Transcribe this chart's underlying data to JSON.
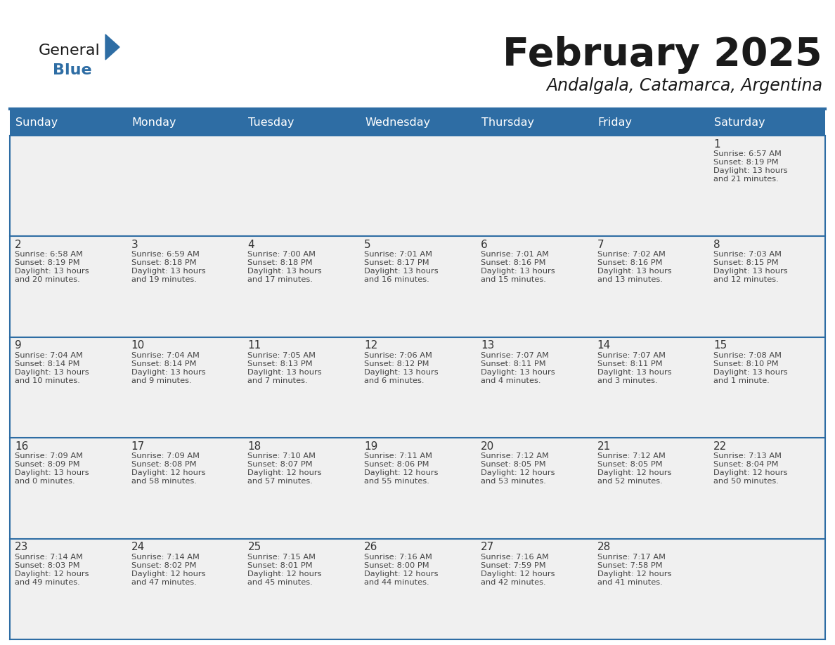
{
  "title": "February 2025",
  "subtitle": "Andalgala, Catamarca, Argentina",
  "header_bg": "#2E6DA4",
  "header_text_color": "#FFFFFF",
  "cell_bg_gray": "#F0F0F0",
  "cell_bg_white": "#FFFFFF",
  "day_number_color": "#333333",
  "cell_text_color": "#444444",
  "border_color": "#2E6DA4",
  "days_of_week": [
    "Sunday",
    "Monday",
    "Tuesday",
    "Wednesday",
    "Thursday",
    "Friday",
    "Saturday"
  ],
  "weeks": [
    [
      {
        "day": "",
        "sunrise": "",
        "sunset": "",
        "daylight": ""
      },
      {
        "day": "",
        "sunrise": "",
        "sunset": "",
        "daylight": ""
      },
      {
        "day": "",
        "sunrise": "",
        "sunset": "",
        "daylight": ""
      },
      {
        "day": "",
        "sunrise": "",
        "sunset": "",
        "daylight": ""
      },
      {
        "day": "",
        "sunrise": "",
        "sunset": "",
        "daylight": ""
      },
      {
        "day": "",
        "sunrise": "",
        "sunset": "",
        "daylight": ""
      },
      {
        "day": "1",
        "sunrise": "6:57 AM",
        "sunset": "8:19 PM",
        "daylight": "13 hours",
        "daylight2": "and 21 minutes."
      }
    ],
    [
      {
        "day": "2",
        "sunrise": "6:58 AM",
        "sunset": "8:19 PM",
        "daylight": "13 hours",
        "daylight2": "and 20 minutes."
      },
      {
        "day": "3",
        "sunrise": "6:59 AM",
        "sunset": "8:18 PM",
        "daylight": "13 hours",
        "daylight2": "and 19 minutes."
      },
      {
        "day": "4",
        "sunrise": "7:00 AM",
        "sunset": "8:18 PM",
        "daylight": "13 hours",
        "daylight2": "and 17 minutes."
      },
      {
        "day": "5",
        "sunrise": "7:01 AM",
        "sunset": "8:17 PM",
        "daylight": "13 hours",
        "daylight2": "and 16 minutes."
      },
      {
        "day": "6",
        "sunrise": "7:01 AM",
        "sunset": "8:16 PM",
        "daylight": "13 hours",
        "daylight2": "and 15 minutes."
      },
      {
        "day": "7",
        "sunrise": "7:02 AM",
        "sunset": "8:16 PM",
        "daylight": "13 hours",
        "daylight2": "and 13 minutes."
      },
      {
        "day": "8",
        "sunrise": "7:03 AM",
        "sunset": "8:15 PM",
        "daylight": "13 hours",
        "daylight2": "and 12 minutes."
      }
    ],
    [
      {
        "day": "9",
        "sunrise": "7:04 AM",
        "sunset": "8:14 PM",
        "daylight": "13 hours",
        "daylight2": "and 10 minutes."
      },
      {
        "day": "10",
        "sunrise": "7:04 AM",
        "sunset": "8:14 PM",
        "daylight": "13 hours",
        "daylight2": "and 9 minutes."
      },
      {
        "day": "11",
        "sunrise": "7:05 AM",
        "sunset": "8:13 PM",
        "daylight": "13 hours",
        "daylight2": "and 7 minutes."
      },
      {
        "day": "12",
        "sunrise": "7:06 AM",
        "sunset": "8:12 PM",
        "daylight": "13 hours",
        "daylight2": "and 6 minutes."
      },
      {
        "day": "13",
        "sunrise": "7:07 AM",
        "sunset": "8:11 PM",
        "daylight": "13 hours",
        "daylight2": "and 4 minutes."
      },
      {
        "day": "14",
        "sunrise": "7:07 AM",
        "sunset": "8:11 PM",
        "daylight": "13 hours",
        "daylight2": "and 3 minutes."
      },
      {
        "day": "15",
        "sunrise": "7:08 AM",
        "sunset": "8:10 PM",
        "daylight": "13 hours",
        "daylight2": "and 1 minute."
      }
    ],
    [
      {
        "day": "16",
        "sunrise": "7:09 AM",
        "sunset": "8:09 PM",
        "daylight": "13 hours",
        "daylight2": "and 0 minutes."
      },
      {
        "day": "17",
        "sunrise": "7:09 AM",
        "sunset": "8:08 PM",
        "daylight": "12 hours",
        "daylight2": "and 58 minutes."
      },
      {
        "day": "18",
        "sunrise": "7:10 AM",
        "sunset": "8:07 PM",
        "daylight": "12 hours",
        "daylight2": "and 57 minutes."
      },
      {
        "day": "19",
        "sunrise": "7:11 AM",
        "sunset": "8:06 PM",
        "daylight": "12 hours",
        "daylight2": "and 55 minutes."
      },
      {
        "day": "20",
        "sunrise": "7:12 AM",
        "sunset": "8:05 PM",
        "daylight": "12 hours",
        "daylight2": "and 53 minutes."
      },
      {
        "day": "21",
        "sunrise": "7:12 AM",
        "sunset": "8:05 PM",
        "daylight": "12 hours",
        "daylight2": "and 52 minutes."
      },
      {
        "day": "22",
        "sunrise": "7:13 AM",
        "sunset": "8:04 PM",
        "daylight": "12 hours",
        "daylight2": "and 50 minutes."
      }
    ],
    [
      {
        "day": "23",
        "sunrise": "7:14 AM",
        "sunset": "8:03 PM",
        "daylight": "12 hours",
        "daylight2": "and 49 minutes."
      },
      {
        "day": "24",
        "sunrise": "7:14 AM",
        "sunset": "8:02 PM",
        "daylight": "12 hours",
        "daylight2": "and 47 minutes."
      },
      {
        "day": "25",
        "sunrise": "7:15 AM",
        "sunset": "8:01 PM",
        "daylight": "12 hours",
        "daylight2": "and 45 minutes."
      },
      {
        "day": "26",
        "sunrise": "7:16 AM",
        "sunset": "8:00 PM",
        "daylight": "12 hours",
        "daylight2": "and 44 minutes."
      },
      {
        "day": "27",
        "sunrise": "7:16 AM",
        "sunset": "7:59 PM",
        "daylight": "12 hours",
        "daylight2": "and 42 minutes."
      },
      {
        "day": "28",
        "sunrise": "7:17 AM",
        "sunset": "7:58 PM",
        "daylight": "12 hours",
        "daylight2": "and 41 minutes."
      },
      {
        "day": "",
        "sunrise": "",
        "sunset": "",
        "daylight": "",
        "daylight2": ""
      }
    ]
  ],
  "logo_text_general": "General",
  "logo_text_blue": "Blue",
  "logo_color_general": "#1a1a1a",
  "logo_color_blue": "#2E6DA4",
  "logo_triangle_color": "#2E6DA4"
}
